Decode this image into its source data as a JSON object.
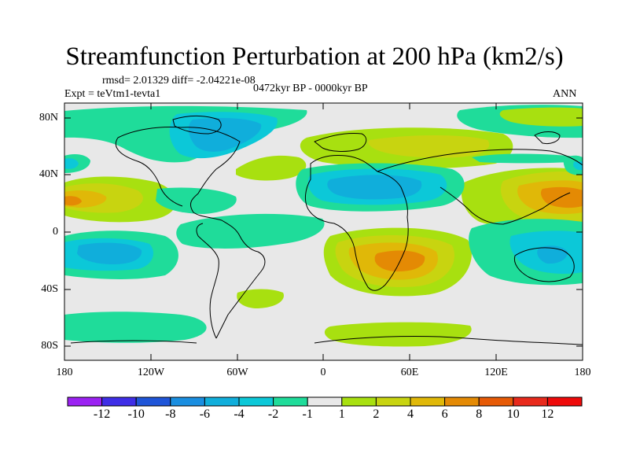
{
  "title": "Streamfunction Perturbation at 200 hPa (km2/s)",
  "stats_text": "rmsd= 2.01329 diff= -2.04221e-08",
  "experiment_text": "Expt = teVtm1-tevta1",
  "period_text": "0472kyr BP - 0000kyr BP",
  "season_text": "ANN",
  "lat_labels": [
    "80N",
    "40N",
    "0",
    "40S",
    "80S"
  ],
  "lon_labels": [
    "180",
    "120W",
    "60W",
    "0",
    "60E",
    "120E",
    "180"
  ],
  "colorbar": {
    "labels": [
      "-12",
      "-10",
      "-8",
      "-6",
      "-4",
      "-2",
      "-1",
      "1",
      "2",
      "4",
      "6",
      "8",
      "10",
      "12"
    ],
    "colors": [
      "#9b22f2",
      "#3f2ee6",
      "#1f55d8",
      "#1a8ee0",
      "#10aedb",
      "#0cc8d8",
      "#1fdc9a",
      "#e8e8e8",
      "#a8e010",
      "#c8d410",
      "#e0b808",
      "#e48a04",
      "#e65a06",
      "#e82a1c",
      "#ee0a0a"
    ]
  }
}
